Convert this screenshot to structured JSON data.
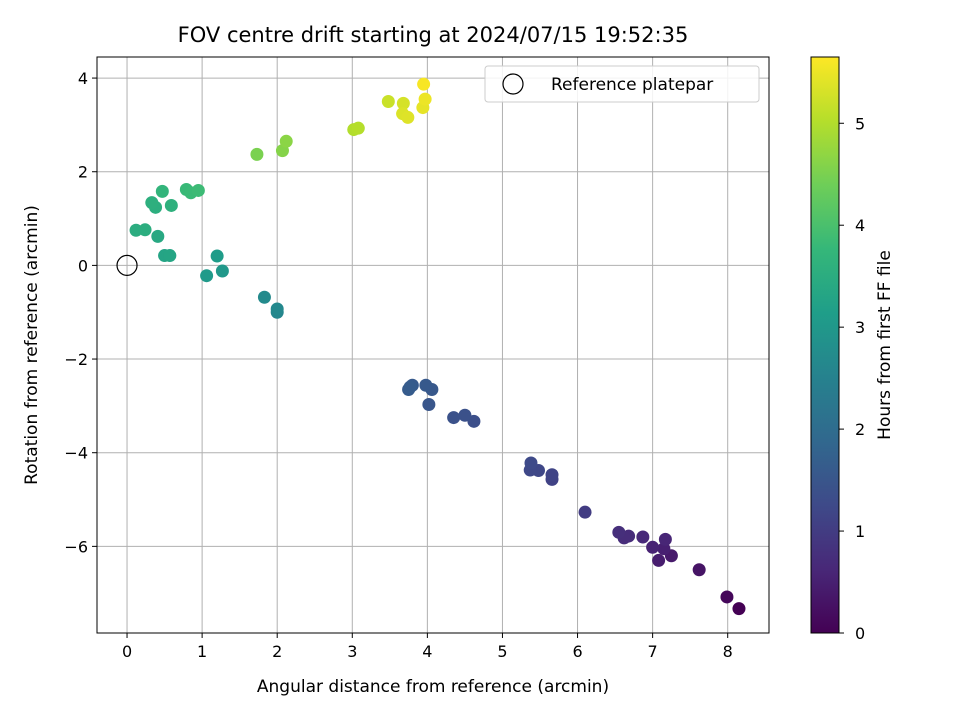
{
  "chart_data": {
    "type": "scatter",
    "title": "FOV centre drift starting at 2024/07/15 19:52:35",
    "xlabel": "Angular distance from reference (arcmin)",
    "ylabel": "Rotation from reference (arcmin)",
    "xlim": [
      -0.4,
      8.55
    ],
    "ylim": [
      -7.85,
      4.45
    ],
    "xticks": [
      0,
      1,
      2,
      3,
      4,
      5,
      6,
      7,
      8
    ],
    "yticks": [
      -6,
      -4,
      -2,
      0,
      2,
      4
    ],
    "grid": true,
    "legend": {
      "placement": "top-right",
      "entries": [
        "Reference platepar"
      ]
    },
    "reference_point": {
      "name": "Reference platepar",
      "x": 0,
      "y": 0
    },
    "colorbar": {
      "label": "Hours from first FF file",
      "colormap": "viridis",
      "range": [
        0,
        5.65
      ],
      "ticks": [
        0,
        1,
        2,
        3,
        4,
        5
      ]
    },
    "points": [
      {
        "x": 8.15,
        "y": -7.33,
        "h": 0.0
      },
      {
        "x": 7.99,
        "y": -7.08,
        "h": 0.1
      },
      {
        "x": 7.62,
        "y": -6.5,
        "h": 0.3
      },
      {
        "x": 7.25,
        "y": -6.2,
        "h": 0.4
      },
      {
        "x": 7.08,
        "y": -6.3,
        "h": 0.45
      },
      {
        "x": 7.15,
        "y": -6.05,
        "h": 0.5
      },
      {
        "x": 7.0,
        "y": -6.02,
        "h": 0.55
      },
      {
        "x": 7.17,
        "y": -5.85,
        "h": 0.6
      },
      {
        "x": 6.87,
        "y": -5.8,
        "h": 0.65
      },
      {
        "x": 6.68,
        "y": -5.78,
        "h": 0.7
      },
      {
        "x": 6.62,
        "y": -5.82,
        "h": 0.72
      },
      {
        "x": 6.55,
        "y": -5.7,
        "h": 0.75
      },
      {
        "x": 6.1,
        "y": -5.27,
        "h": 1.0
      },
      {
        "x": 5.66,
        "y": -4.57,
        "h": 1.1
      },
      {
        "x": 5.66,
        "y": -4.47,
        "h": 1.15
      },
      {
        "x": 5.48,
        "y": -4.38,
        "h": 1.2
      },
      {
        "x": 5.37,
        "y": -4.37,
        "h": 1.22
      },
      {
        "x": 5.38,
        "y": -4.22,
        "h": 1.25
      },
      {
        "x": 4.62,
        "y": -3.33,
        "h": 1.35
      },
      {
        "x": 4.5,
        "y": -3.2,
        "h": 1.4
      },
      {
        "x": 4.35,
        "y": -3.25,
        "h": 1.42
      },
      {
        "x": 4.02,
        "y": -2.97,
        "h": 1.5
      },
      {
        "x": 4.06,
        "y": -2.65,
        "h": 1.55
      },
      {
        "x": 3.98,
        "y": -2.56,
        "h": 1.57
      },
      {
        "x": 3.8,
        "y": -2.56,
        "h": 1.6
      },
      {
        "x": 3.75,
        "y": -2.65,
        "h": 1.62
      },
      {
        "x": 3.77,
        "y": -2.6,
        "h": 1.64
      },
      {
        "x": 2.0,
        "y": -1.0,
        "h": 2.6
      },
      {
        "x": 2.0,
        "y": -0.93,
        "h": 2.65
      },
      {
        "x": 1.83,
        "y": -0.68,
        "h": 2.7
      },
      {
        "x": 1.27,
        "y": -0.12,
        "h": 3.0
      },
      {
        "x": 1.06,
        "y": -0.22,
        "h": 3.05
      },
      {
        "x": 1.2,
        "y": 0.2,
        "h": 3.1
      },
      {
        "x": 0.5,
        "y": 0.21,
        "h": 3.3
      },
      {
        "x": 0.57,
        "y": 0.21,
        "h": 3.32
      },
      {
        "x": 0.41,
        "y": 0.62,
        "h": 3.4
      },
      {
        "x": 0.12,
        "y": 0.75,
        "h": 3.5
      },
      {
        "x": 0.24,
        "y": 0.76,
        "h": 3.52
      },
      {
        "x": 0.38,
        "y": 1.24,
        "h": 3.55
      },
      {
        "x": 0.33,
        "y": 1.34,
        "h": 3.57
      },
      {
        "x": 0.59,
        "y": 1.28,
        "h": 3.6
      },
      {
        "x": 0.47,
        "y": 1.58,
        "h": 3.7
      },
      {
        "x": 0.79,
        "y": 1.62,
        "h": 3.8
      },
      {
        "x": 0.85,
        "y": 1.55,
        "h": 3.82
      },
      {
        "x": 0.95,
        "y": 1.6,
        "h": 3.85
      },
      {
        "x": 1.73,
        "y": 2.37,
        "h": 4.5
      },
      {
        "x": 2.07,
        "y": 2.45,
        "h": 4.6
      },
      {
        "x": 2.12,
        "y": 2.65,
        "h": 4.65
      },
      {
        "x": 3.02,
        "y": 2.9,
        "h": 5.0
      },
      {
        "x": 3.08,
        "y": 2.93,
        "h": 5.02
      },
      {
        "x": 3.48,
        "y": 3.5,
        "h": 5.2
      },
      {
        "x": 3.68,
        "y": 3.46,
        "h": 5.3
      },
      {
        "x": 3.67,
        "y": 3.24,
        "h": 5.35
      },
      {
        "x": 3.74,
        "y": 3.16,
        "h": 5.38
      },
      {
        "x": 3.94,
        "y": 3.37,
        "h": 5.45
      },
      {
        "x": 3.97,
        "y": 3.55,
        "h": 5.5
      },
      {
        "x": 3.95,
        "y": 3.87,
        "h": 5.6
      }
    ]
  }
}
